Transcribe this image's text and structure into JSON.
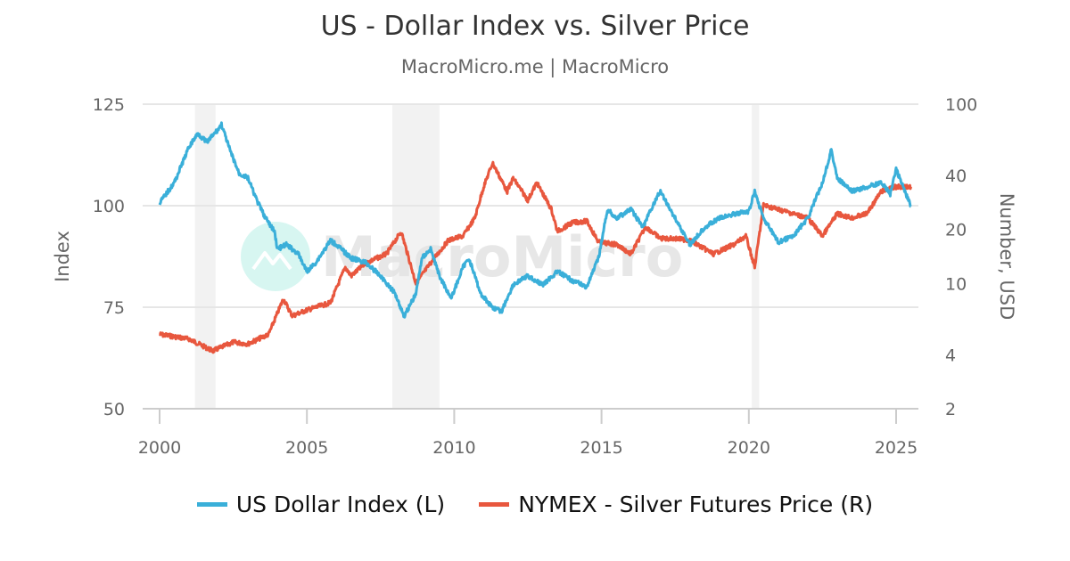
{
  "chart_data": {
    "type": "line",
    "title": "US - Dollar Index vs. Silver Price",
    "subtitle": "MacroMicro.me | MacroMicro",
    "watermark": "MacroMicro",
    "xlabel": "",
    "xlim": [
      2000,
      2025.6
    ],
    "x_ticks": [
      "2000",
      "2005",
      "2010",
      "2015",
      "2020",
      "2025"
    ],
    "left_axis": {
      "label": "Index",
      "scale": "linear",
      "ylim": [
        50,
        125
      ],
      "ticks": [
        "125",
        "100",
        "75",
        "50"
      ],
      "tick_values": [
        125,
        100,
        75,
        50
      ]
    },
    "right_axis": {
      "label": "Number, USD",
      "scale": "log",
      "ylim": [
        2,
        100
      ],
      "ticks": [
        "100",
        "40",
        "20",
        "10",
        "4",
        "2"
      ],
      "tick_values": [
        100,
        40,
        20,
        10,
        4,
        2
      ]
    },
    "grid": true,
    "legend_position": "bottom",
    "recession_bands": [
      [
        2001.2,
        2001.9
      ],
      [
        2007.9,
        2009.5
      ],
      [
        2020.1,
        2020.35
      ]
    ],
    "series": [
      {
        "name": "US Dollar Index (L)",
        "axis": "left",
        "color": "#3aafd9",
        "x": [
          2000.0,
          2000.5,
          2001.0,
          2001.3,
          2001.6,
          2002.0,
          2002.1,
          2002.4,
          2002.7,
          2003.0,
          2003.3,
          2003.6,
          2003.9,
          2004.0,
          2004.3,
          2004.7,
          2005.0,
          2005.3,
          2005.8,
          2006.0,
          2006.5,
          2007.0,
          2007.5,
          2008.0,
          2008.3,
          2008.7,
          2008.9,
          2009.2,
          2009.5,
          2009.9,
          2010.3,
          2010.5,
          2010.9,
          2011.3,
          2011.6,
          2012.0,
          2012.5,
          2013.0,
          2013.5,
          2014.0,
          2014.5,
          2014.9,
          2015.2,
          2015.5,
          2016.0,
          2016.4,
          2016.9,
          2017.0,
          2017.5,
          2018.0,
          2018.5,
          2019.0,
          2019.5,
          2020.0,
          2020.2,
          2020.5,
          2021.0,
          2021.5,
          2022.0,
          2022.5,
          2022.8,
          2023.0,
          2023.5,
          2024.0,
          2024.5,
          2024.8,
          2025.0,
          2025.3,
          2025.5
        ],
        "values": [
          100.7,
          105.7,
          114.5,
          117.8,
          115.6,
          118.9,
          120.0,
          113.4,
          107.9,
          106.8,
          101.3,
          96.9,
          93.6,
          89.3,
          90.4,
          88.2,
          83.8,
          86.0,
          91.4,
          90.4,
          87.1,
          86.0,
          82.7,
          78.3,
          72.8,
          78.3,
          87.1,
          89.3,
          82.7,
          77.2,
          84.9,
          87.1,
          78.3,
          75.0,
          73.9,
          80.5,
          82.7,
          80.5,
          83.8,
          81.6,
          80.0,
          87.1,
          99.1,
          96.9,
          99.1,
          94.7,
          102.4,
          103.5,
          96.9,
          90.4,
          94.7,
          96.9,
          98.0,
          98.5,
          103.5,
          96.9,
          91.0,
          92.5,
          96.9,
          105.7,
          113.8,
          106.8,
          103.5,
          104.6,
          105.7,
          102.9,
          109.0,
          103.5,
          99.8
        ]
      },
      {
        "name": "NYMEX - Silver Futures Price (R)",
        "axis": "right",
        "color": "#e8573e",
        "x": [
          2000.0,
          2001.0,
          2001.8,
          2002.5,
          2003.0,
          2003.7,
          2004.2,
          2004.5,
          2005.0,
          2005.8,
          2006.3,
          2006.5,
          2007.0,
          2007.7,
          2008.2,
          2008.7,
          2009.2,
          2009.8,
          2010.3,
          2010.7,
          2011.0,
          2011.3,
          2011.8,
          2012.0,
          2012.5,
          2012.8,
          2013.3,
          2013.5,
          2014.0,
          2014.5,
          2014.9,
          2015.5,
          2016.0,
          2016.5,
          2017.0,
          2017.5,
          2018.0,
          2018.8,
          2019.5,
          2019.9,
          2020.2,
          2020.5,
          2021.0,
          2021.5,
          2022.0,
          2022.5,
          2023.0,
          2023.5,
          2024.0,
          2024.5,
          2025.0,
          2025.5
        ],
        "values": [
          5.2,
          4.9,
          4.2,
          4.7,
          4.6,
          5.2,
          8.2,
          6.6,
          7.1,
          7.8,
          12.3,
          11.0,
          13.0,
          14.6,
          19.5,
          10.0,
          13.0,
          17.4,
          18.4,
          23.2,
          34.6,
          47.0,
          32.6,
          38.7,
          29.1,
          36.5,
          25.9,
          19.5,
          21.8,
          22.3,
          17.0,
          16.5,
          14.6,
          20.7,
          17.8,
          17.8,
          17.4,
          14.6,
          16.5,
          18.4,
          12.3,
          27.4,
          25.9,
          24.5,
          23.2,
          18.4,
          24.5,
          23.2,
          24.5,
          32.6,
          34.6,
          34.6
        ]
      }
    ]
  },
  "legend": {
    "items": [
      {
        "label": "US Dollar Index (L)",
        "color": "#3aafd9"
      },
      {
        "label": "NYMEX - Silver Futures Price (R)",
        "color": "#e8573e"
      }
    ]
  }
}
